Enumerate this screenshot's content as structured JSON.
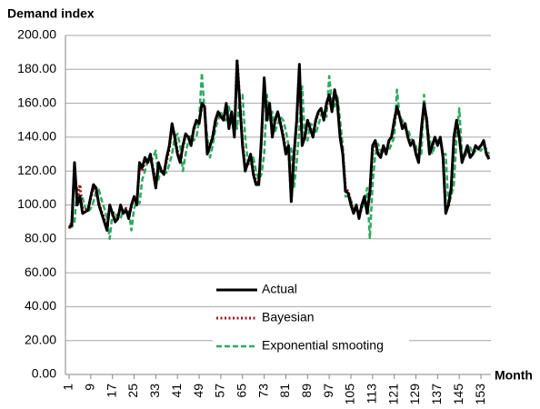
{
  "chart_data": {
    "type": "line",
    "title": "Demand index",
    "x_label": "Month",
    "x": [
      1,
      2,
      3,
      4,
      5,
      6,
      7,
      8,
      9,
      10,
      11,
      12,
      13,
      14,
      15,
      16,
      17,
      18,
      19,
      20,
      21,
      22,
      23,
      24,
      25,
      26,
      27,
      28,
      29,
      30,
      31,
      32,
      33,
      34,
      35,
      36,
      37,
      38,
      39,
      40,
      41,
      42,
      43,
      44,
      45,
      46,
      47,
      48,
      49,
      50,
      51,
      52,
      53,
      54,
      55,
      56,
      57,
      58,
      59,
      60,
      61,
      62,
      63,
      64,
      65,
      66,
      67,
      68,
      69,
      70,
      71,
      72,
      73,
      74,
      75,
      76,
      77,
      78,
      79,
      80,
      81,
      82,
      83,
      84,
      85,
      86,
      87,
      88,
      89,
      90,
      91,
      92,
      93,
      94,
      95,
      96,
      97,
      98,
      99,
      100,
      101,
      102,
      103,
      104,
      105,
      106,
      107,
      108,
      109,
      110,
      111,
      112,
      113,
      114,
      115,
      116,
      117,
      118,
      119,
      120,
      121,
      122,
      123,
      124,
      125,
      126,
      127,
      128,
      129,
      130,
      131,
      132,
      133,
      134,
      135,
      136,
      137,
      138,
      139,
      140,
      141,
      142,
      143,
      144,
      145,
      146,
      147,
      148,
      149,
      150,
      151,
      152,
      153,
      154,
      155,
      156
    ],
    "xlim": [
      1,
      156
    ],
    "xticks": [
      1,
      9,
      17,
      25,
      33,
      41,
      49,
      57,
      65,
      73,
      81,
      89,
      97,
      105,
      113,
      121,
      129,
      137,
      145,
      153
    ],
    "ylim": [
      0,
      200
    ],
    "yticks": [
      {
        "value": 0,
        "label": "0.00"
      },
      {
        "value": 20,
        "label": "20.00"
      },
      {
        "value": 40,
        "label": "40.00"
      },
      {
        "value": 60,
        "label": "60.00"
      },
      {
        "value": 80,
        "label": "80.00"
      },
      {
        "value": 100,
        "label": "100.00"
      },
      {
        "value": 120,
        "label": "120.00"
      },
      {
        "value": 140,
        "label": "140.00"
      },
      {
        "value": 160,
        "label": "160.00"
      },
      {
        "value": 180,
        "label": "180.00"
      },
      {
        "value": 200,
        "label": "200.00"
      }
    ],
    "grid": true,
    "series": [
      {
        "name": "Actual",
        "color": "#000000",
        "dash": "solid",
        "values": [
          87,
          88,
          125,
          100,
          105,
          95,
          96,
          97,
          105,
          112,
          110,
          100,
          95,
          90,
          85,
          100,
          95,
          90,
          92,
          100,
          95,
          97,
          92,
          100,
          105,
          100,
          125,
          122,
          128,
          125,
          130,
          120,
          110,
          125,
          120,
          118,
          128,
          135,
          148,
          140,
          130,
          125,
          135,
          142,
          140,
          135,
          145,
          150,
          148,
          160,
          158,
          130,
          135,
          140,
          150,
          155,
          152,
          150,
          160,
          145,
          155,
          140,
          185,
          160,
          135,
          120,
          125,
          130,
          118,
          112,
          112,
          140,
          175,
          150,
          160,
          140,
          150,
          155,
          148,
          140,
          130,
          135,
          102,
          130,
          150,
          183,
          135,
          140,
          150,
          145,
          140,
          150,
          155,
          157,
          150,
          160,
          165,
          155,
          168,
          160,
          140,
          130,
          108,
          107,
          100,
          95,
          100,
          92,
          100,
          105,
          95,
          108,
          135,
          138,
          130,
          128,
          135,
          130,
          138,
          140,
          150,
          158,
          152,
          145,
          148,
          140,
          135,
          138,
          130,
          125,
          145,
          160,
          150,
          130,
          135,
          140,
          135,
          140,
          128,
          95,
          100,
          110,
          140,
          150,
          140,
          125,
          130,
          135,
          128,
          130,
          135,
          133,
          135,
          138,
          130,
          127
        ]
      },
      {
        "name": "Bayesian",
        "color": "#a01818",
        "dash": "dotted",
        "values": [
          86,
          90,
          122,
          102,
          112,
          96,
          97,
          98,
          104,
          110,
          108,
          101,
          96,
          92,
          87,
          98,
          96,
          91,
          93,
          98,
          96,
          98,
          94,
          99,
          104,
          102,
          122,
          120,
          126,
          126,
          128,
          122,
          112,
          123,
          121,
          119,
          126,
          133,
          146,
          141,
          132,
          127,
          134,
          141,
          141,
          137,
          144,
          149,
          149,
          158,
          157,
          132,
          134,
          141,
          149,
          154,
          153,
          151,
          158,
          147,
          154,
          142,
          186,
          162,
          137,
          122,
          124,
          129,
          120,
          114,
          113,
          138,
          172,
          152,
          158,
          142,
          149,
          154,
          149,
          142,
          132,
          134,
          103,
          128,
          149,
          180,
          137,
          139,
          149,
          146,
          141,
          149,
          154,
          156,
          151,
          158,
          163,
          157,
          166,
          161,
          142,
          132,
          110,
          108,
          102,
          96,
          99,
          94,
          99,
          104,
          97,
          106,
          132,
          137,
          131,
          129,
          134,
          131,
          137,
          141,
          148,
          156,
          153,
          146,
          147,
          141,
          136,
          137,
          131,
          127,
          143,
          157,
          151,
          132,
          134,
          139,
          136,
          139,
          130,
          97,
          99,
          109,
          137,
          148,
          141,
          127,
          129,
          134,
          129,
          130,
          134,
          134,
          135,
          137,
          131,
          128
        ]
      },
      {
        "name": "Exponential smooting",
        "color": "#2eaa62",
        "dash": "dashed",
        "values": [
          88,
          87,
          90,
          110,
          103,
          104,
          98,
          96,
          98,
          102,
          108,
          109,
          103,
          98,
          92,
          80,
          95,
          96,
          92,
          92,
          97,
          96,
          97,
          85,
          98,
          102,
          101,
          115,
          120,
          126,
          125,
          128,
          132,
          115,
          122,
          120,
          119,
          124,
          130,
          140,
          142,
          135,
          120,
          130,
          138,
          141,
          138,
          140,
          150,
          178,
          155,
          140,
          128,
          135,
          145,
          150,
          155,
          150,
          150,
          158,
          148,
          152,
          145,
          165,
          165,
          140,
          125,
          123,
          128,
          120,
          115,
          118,
          130,
          165,
          150,
          155,
          143,
          148,
          152,
          150,
          144,
          135,
          133,
          110,
          125,
          145,
          170,
          140,
          138,
          148,
          147,
          142,
          147,
          153,
          155,
          152,
          176,
          160,
          158,
          165,
          150,
          135,
          105,
          105,
          103,
          97,
          96,
          95,
          97,
          102,
          110,
          80,
          112,
          130,
          136,
          132,
          130,
          133,
          132,
          136,
          140,
          168,
          152,
          150,
          145,
          145,
          140,
          137,
          135,
          128,
          130,
          165,
          145,
          140,
          130,
          135,
          138,
          140,
          130,
          130,
          100,
          105,
          112,
          140,
          157,
          130,
          128,
          132,
          134,
          130,
          132,
          133,
          132,
          135,
          133,
          130
        ]
      }
    ]
  }
}
